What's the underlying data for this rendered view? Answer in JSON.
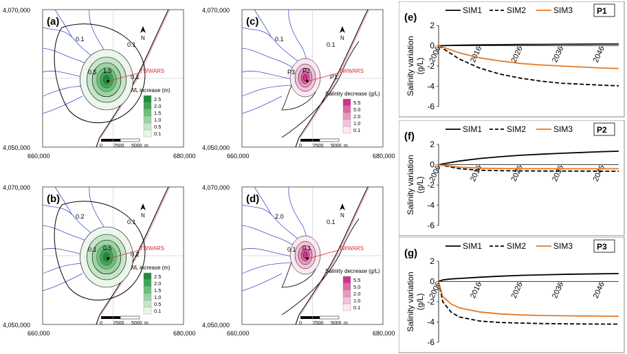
{
  "maps": [
    {
      "id": "a",
      "label": "(a)",
      "type": "gwl",
      "legend_title": "GWL increase (m)",
      "legend_values": [
        "2.5",
        "2.0",
        "1.5",
        "1.0",
        "0.5",
        "0.1"
      ],
      "contour_labels": [
        "0.1",
        "0.1",
        "0.5",
        "1.5",
        "0.1"
      ],
      "ytick_top": "4,070,000",
      "ytick_bottom": "4,050,000",
      "xtick_left": "660,000",
      "xtick_right": "680,000"
    },
    {
      "id": "c",
      "label": "(c)",
      "type": "sal",
      "legend_title": "Salinity decrease (g/L)",
      "legend_values": [
        "5.5",
        "5.0",
        "2.0",
        "1.0",
        "0.1"
      ],
      "contour_labels": [
        "0.1",
        "0.1",
        "P3",
        "P2",
        "P1"
      ],
      "ytick_top": "4,070,000",
      "ytick_bottom": "4,050,000",
      "xtick_left": "660,000",
      "xtick_right": "680,000"
    },
    {
      "id": "b",
      "label": "(b)",
      "type": "gwl",
      "legend_title": "GWL increase (m)",
      "legend_values": [
        "2.5",
        "2.0",
        "1.5",
        "1.0",
        "0.5",
        "0.1"
      ],
      "contour_labels": [
        "0.2",
        "0.1",
        "0.1",
        "0.5",
        "0.2"
      ],
      "ytick_top": "4,070,000",
      "ytick_bottom": "4,050,000",
      "xtick_left": "660,000",
      "xtick_right": "680,000"
    },
    {
      "id": "d",
      "label": "(d)",
      "type": "sal",
      "legend_title": "Salinity decrease (g/L)",
      "legend_values": [
        "5.5",
        "5.0",
        "2.0",
        "1.0",
        "0.1"
      ],
      "contour_labels": [
        "2.0",
        "0.1",
        "0.1",
        "0.1"
      ],
      "ytick_top": "4,070,000",
      "ytick_bottom": "4,050,000",
      "xtick_left": "660,000",
      "xtick_right": "680,000"
    }
  ],
  "map_common": {
    "site_label": "TWWARS",
    "north_label": "N",
    "scale_labels": [
      "0",
      "2500",
      "5000",
      "m"
    ],
    "colors": {
      "gwl": [
        "#1e8a3c",
        "#3fa557",
        "#6cbf7b",
        "#9bd4a3",
        "#c6e6c9",
        "#ecf6ec"
      ],
      "sal": [
        "#d4308a",
        "#e166a6",
        "#eb97c2",
        "#f3c2dc",
        "#fbe8f1"
      ],
      "river": "#3d4fc4",
      "coast": "#000000",
      "red": "#e0282e"
    }
  },
  "chart_data": [
    {
      "type": "line",
      "panel": "(e)",
      "point": "P1",
      "ylabel": "Salinity variation (g/L)",
      "ylim": [
        -6,
        2
      ],
      "yticks": [
        "2",
        "0",
        "-2",
        "-4",
        "-6"
      ],
      "xticks": [
        "2006",
        "2016",
        "2026",
        "2036",
        "2046"
      ],
      "x": [
        2006,
        2011,
        2016,
        2021,
        2026,
        2031,
        2036,
        2041,
        2046,
        2050
      ],
      "series": [
        {
          "name": "SIM1",
          "style": "solid",
          "color": "#000000",
          "values": [
            0,
            0.05,
            0.08,
            0.1,
            0.12,
            0.13,
            0.14,
            0.15,
            0.16,
            0.16
          ]
        },
        {
          "name": "SIM2",
          "style": "dashed",
          "color": "#000000",
          "values": [
            0,
            -1.3,
            -2.2,
            -2.8,
            -3.2,
            -3.5,
            -3.7,
            -3.8,
            -3.9,
            -3.95
          ]
        },
        {
          "name": "SIM3",
          "style": "solid",
          "color": "#e87722",
          "values": [
            0,
            -0.7,
            -1.2,
            -1.5,
            -1.75,
            -1.9,
            -2.0,
            -2.1,
            -2.2,
            -2.25
          ]
        }
      ]
    },
    {
      "type": "line",
      "panel": "(f)",
      "point": "P2",
      "ylabel": "Salinity variation (g/L)",
      "ylim": [
        -6,
        2
      ],
      "yticks": [
        "2",
        "0",
        "-2",
        "-4",
        "-6"
      ],
      "xticks": [
        "2006",
        "2016",
        "2026",
        "2036",
        "2046"
      ],
      "x": [
        2006,
        2011,
        2016,
        2021,
        2026,
        2031,
        2036,
        2041,
        2046,
        2050
      ],
      "series": [
        {
          "name": "SIM1",
          "style": "solid",
          "color": "#000000",
          "values": [
            0,
            0.35,
            0.6,
            0.78,
            0.92,
            1.03,
            1.12,
            1.2,
            1.28,
            1.32
          ]
        },
        {
          "name": "SIM2",
          "style": "dashed",
          "color": "#000000",
          "values": [
            0,
            -0.4,
            -0.55,
            -0.6,
            -0.62,
            -0.63,
            -0.64,
            -0.64,
            -0.65,
            -0.65
          ]
        },
        {
          "name": "SIM3",
          "style": "solid",
          "color": "#e87722",
          "values": [
            0,
            -0.25,
            -0.35,
            -0.38,
            -0.4,
            -0.4,
            -0.41,
            -0.41,
            -0.41,
            -0.41
          ]
        }
      ]
    },
    {
      "type": "line",
      "panel": "(g)",
      "point": "P3",
      "ylabel": "Salinity variation (g/L)",
      "ylim": [
        -6,
        2
      ],
      "yticks": [
        "2",
        "0",
        "-2",
        "-4",
        "-6"
      ],
      "xticks": [
        "2006",
        "2016",
        "2026",
        "2036",
        "2046"
      ],
      "x": [
        2006,
        2007,
        2009,
        2011,
        2016,
        2021,
        2026,
        2031,
        2036,
        2041,
        2046,
        2050
      ],
      "series": [
        {
          "name": "SIM1",
          "style": "solid",
          "color": "#000000",
          "values": [
            0,
            0.15,
            0.25,
            0.3,
            0.42,
            0.52,
            0.6,
            0.65,
            0.7,
            0.73,
            0.76,
            0.78
          ]
        },
        {
          "name": "SIM2",
          "style": "dashed",
          "color": "#000000",
          "values": [
            0,
            -2.0,
            -3.0,
            -3.5,
            -3.9,
            -4.05,
            -4.1,
            -4.15,
            -4.17,
            -4.19,
            -4.2,
            -4.2
          ]
        },
        {
          "name": "SIM3",
          "style": "solid",
          "color": "#e87722",
          "values": [
            0,
            -1.5,
            -2.2,
            -2.6,
            -3.0,
            -3.2,
            -3.3,
            -3.35,
            -3.38,
            -3.4,
            -3.42,
            -3.43
          ]
        }
      ]
    }
  ]
}
